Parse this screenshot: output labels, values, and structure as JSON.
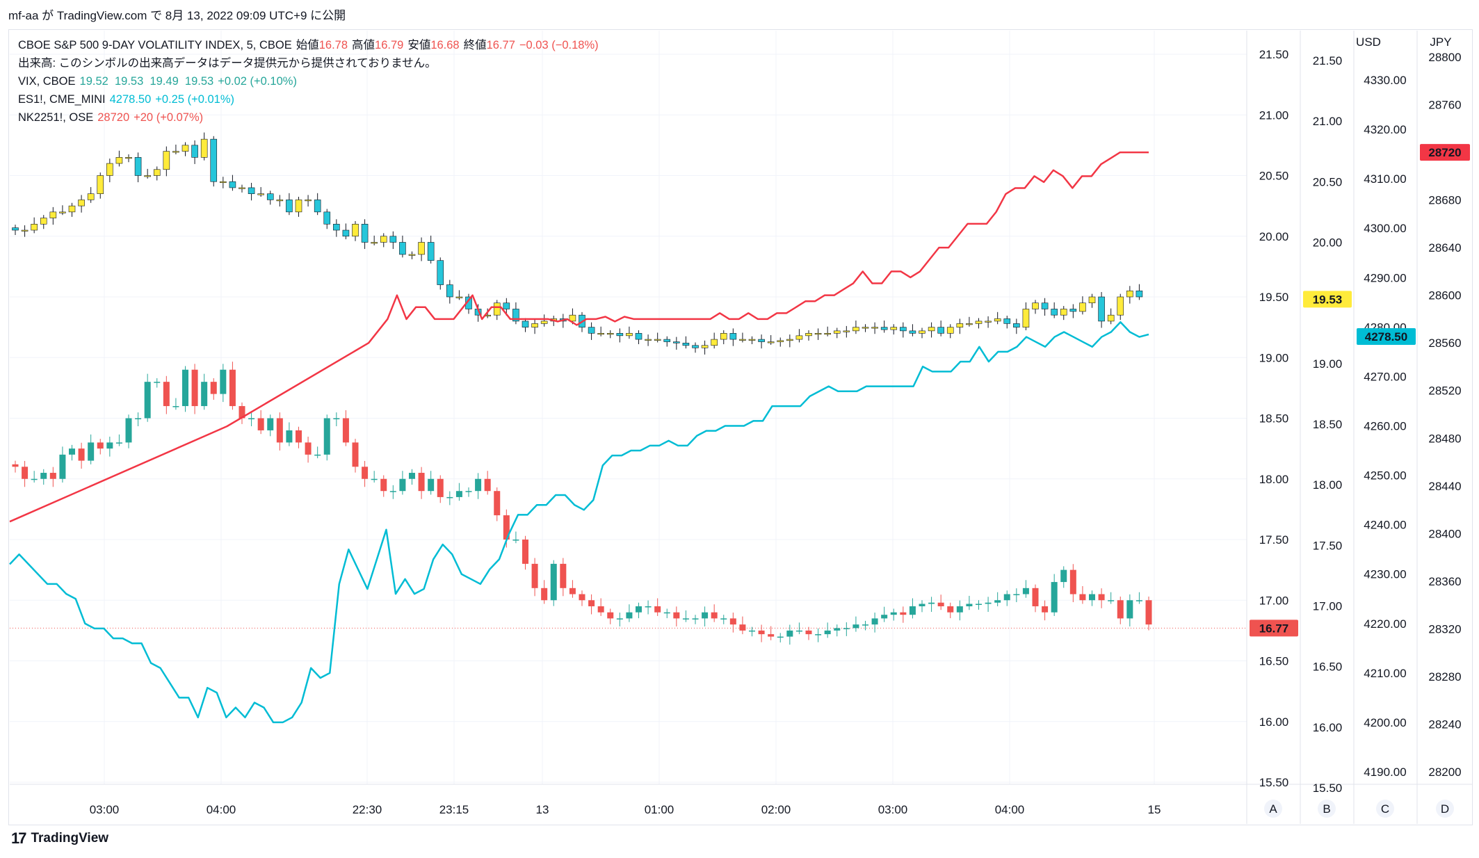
{
  "header": {
    "text": "mf-aa が TradingView.com で 8月 13, 2022 09:09 UTC+9 に公開"
  },
  "legend": {
    "main": {
      "symbol": "CBOE S&P 500 9-DAY VOLATILITY INDEX, 5, CBOE",
      "open_label": "始値",
      "open": "16.78",
      "high_label": "高値",
      "high": "16.79",
      "low_label": "安値",
      "low": "16.68",
      "close_label": "終値",
      "close": "16.77",
      "change": "−0.03 (−0.18%)"
    },
    "volume_note": "出来高: このシンボルの出来高データはデータ提供元から提供されておりません。",
    "vix": {
      "symbol": "VIX, CBOE",
      "values": "19.52  19.53  19.49  19.53",
      "change": "+0.02 (+0.10%)"
    },
    "es1": {
      "symbol": "ES1!, CME_MINI",
      "value": "4278.50",
      "change": "+0.25 (+0.01%)"
    },
    "nk": {
      "symbol": "NK2251!, OSE",
      "value": "28720",
      "change": "+20 (+0.07%)"
    }
  },
  "colors": {
    "up": "#26a69a",
    "down": "#ef5350",
    "vix_up": "#ffeb3b",
    "vix_down": "#26c6da",
    "es_line": "#00bcd4",
    "nk_line": "#f23645",
    "grid": "#f0f3fa"
  },
  "chart_data": {
    "type": "line",
    "x_ticks": [
      "03:00",
      "04:00",
      "22:30",
      "23:15",
      "13",
      "01:00",
      "02:00",
      "03:00",
      "04:00",
      "15"
    ],
    "axes": {
      "A": {
        "ticks": [
          "21.50",
          "21.00",
          "20.50",
          "20.00",
          "19.50",
          "19.00",
          "18.50",
          "18.00",
          "17.50",
          "17.00",
          "16.50",
          "16.00",
          "15.50"
        ],
        "range": [
          15.4,
          21.7
        ],
        "last_label": "16.77"
      },
      "B": {
        "ticks": [
          "21.50",
          "21.00",
          "20.50",
          "20.00",
          "19.50",
          "19.00",
          "18.50",
          "18.00",
          "17.50",
          "17.00",
          "16.50",
          "16.00",
          "15.50"
        ],
        "range": [
          15.4,
          21.7
        ],
        "last_label": "19.53"
      },
      "C": {
        "header": "USD",
        "ticks": [
          "4330.00",
          "4320.00",
          "4310.00",
          "4300.00",
          "4290.00",
          "4280.00",
          "4270.00",
          "4260.00",
          "4250.00",
          "4240.00",
          "4230.00",
          "4220.00",
          "4210.00",
          "4200.00",
          "4190.00"
        ],
        "range": [
          4185,
          4335
        ],
        "last_label": "4278.50"
      },
      "D": {
        "header": "JPY",
        "ticks": [
          "28800",
          "28760",
          "28720",
          "28680",
          "28640",
          "28600",
          "28560",
          "28520",
          "28480",
          "28440",
          "28400",
          "28360",
          "28320",
          "28280",
          "28240",
          "28200"
        ],
        "range": [
          28190,
          28810
        ],
        "last_label": "28720"
      }
    },
    "axis_letters": [
      "A",
      "B",
      "C",
      "D"
    ],
    "series": [
      {
        "name": "VIX9D",
        "type": "candle",
        "close": [
          18.1,
          18.0,
          18.0,
          18.05,
          18.0,
          18.2,
          18.25,
          18.15,
          18.3,
          18.25,
          18.3,
          18.3,
          18.5,
          18.5,
          18.8,
          18.8,
          18.6,
          18.6,
          18.9,
          18.6,
          18.8,
          18.7,
          18.9,
          18.6,
          18.5,
          18.5,
          18.4,
          18.5,
          18.3,
          18.4,
          18.3,
          18.2,
          18.2,
          18.5,
          18.5,
          18.3,
          18.1,
          18.0,
          18.0,
          17.9,
          17.9,
          18.0,
          18.05,
          17.9,
          18.0,
          17.85,
          17.85,
          17.9,
          17.9,
          18.0,
          17.9,
          17.7,
          17.5,
          17.5,
          17.3,
          17.1,
          17.0,
          17.3,
          17.1,
          17.05,
          17.0,
          16.95,
          16.9,
          16.85,
          16.85,
          16.9,
          16.95,
          16.95,
          16.9,
          16.9,
          16.85,
          16.85,
          16.85,
          16.9,
          16.85,
          16.85,
          16.8,
          16.75,
          16.75,
          16.72,
          16.7,
          16.7,
          16.75,
          16.75,
          16.72,
          16.72,
          16.75,
          16.77,
          16.77,
          16.8,
          16.8,
          16.85,
          16.88,
          16.9,
          16.88,
          16.95,
          16.97,
          16.98,
          16.95,
          16.9,
          16.95,
          16.97,
          16.97,
          16.98,
          17.0,
          17.05,
          17.05,
          17.1,
          16.95,
          16.9,
          17.15,
          17.25,
          17.05,
          17.0,
          17.05,
          17.0,
          17.0,
          16.85,
          17.0,
          17.0,
          16.8
        ],
        "hi_lo_spread": 0.06,
        "last": 16.77
      },
      {
        "name": "VIX",
        "type": "candle",
        "color_up": "#ffeb3b",
        "color_down": "#26c6da",
        "close": [
          20.05,
          20.05,
          20.1,
          20.15,
          20.2,
          20.2,
          20.25,
          20.3,
          20.35,
          20.5,
          20.6,
          20.65,
          20.65,
          20.5,
          20.5,
          20.55,
          20.7,
          20.7,
          20.75,
          20.65,
          20.8,
          20.45,
          20.45,
          20.4,
          20.4,
          20.35,
          20.35,
          20.3,
          20.3,
          20.2,
          20.3,
          20.3,
          20.2,
          20.1,
          20.05,
          20.0,
          20.1,
          19.95,
          19.95,
          20.0,
          19.95,
          19.85,
          19.85,
          19.95,
          19.8,
          19.6,
          19.5,
          19.5,
          19.4,
          19.35,
          19.35,
          19.45,
          19.4,
          19.3,
          19.25,
          19.28,
          19.3,
          19.32,
          19.3,
          19.35,
          19.25,
          19.2,
          19.2,
          19.2,
          19.18,
          19.2,
          19.15,
          19.15,
          19.15,
          19.13,
          19.12,
          19.1,
          19.08,
          19.1,
          19.15,
          19.2,
          19.15,
          19.15,
          19.15,
          19.13,
          19.13,
          19.14,
          19.15,
          19.18,
          19.2,
          19.2,
          19.2,
          19.22,
          19.22,
          19.25,
          19.25,
          19.25,
          19.23,
          19.25,
          19.22,
          19.2,
          19.22,
          19.25,
          19.2,
          19.25,
          19.28,
          19.28,
          19.3,
          19.3,
          19.32,
          19.28,
          19.25,
          19.4,
          19.45,
          19.4,
          19.35,
          19.4,
          19.38,
          19.45,
          19.5,
          19.3,
          19.35,
          19.5,
          19.55,
          19.5
        ],
        "hi_lo_spread": 0.05,
        "last": 19.53
      },
      {
        "name": "ES1!",
        "type": "line",
        "color": "#00bcd4",
        "values": [
          4232,
          4234,
          4232,
          4230,
          4228,
          4228,
          4226,
          4225,
          4220,
          4219,
          4219,
          4217,
          4217,
          4216,
          4216,
          4212,
          4211,
          4208,
          4205,
          4205,
          4201,
          4207,
          4206,
          4201,
          4203,
          4201,
          4204,
          4203,
          4200,
          4200,
          4201,
          4204,
          4211,
          4209,
          4210,
          4228,
          4235,
          4231,
          4227,
          4233,
          4239,
          4226,
          4229,
          4226,
          4227,
          4233,
          4236,
          4234,
          4230,
          4229,
          4228,
          4231,
          4233,
          4238,
          4242,
          4242,
          4244,
          4244,
          4246,
          4246,
          4244,
          4243,
          4245,
          4252,
          4254,
          4254,
          4255,
          4255,
          4256,
          4256,
          4257,
          4256,
          4256,
          4258,
          4259,
          4259,
          4260,
          4260,
          4260,
          4261,
          4261,
          4264,
          4264,
          4264,
          4264,
          4266,
          4267,
          4268,
          4267,
          4267,
          4267,
          4268,
          4268,
          4268,
          4268,
          4268,
          4268,
          4272,
          4271,
          4271,
          4271,
          4273,
          4273,
          4276,
          4273,
          4275,
          4275,
          4276,
          4278,
          4277,
          4276,
          4278,
          4279,
          4278,
          4277,
          4276,
          4278,
          4279,
          4281,
          4279,
          4278,
          4278.5
        ],
        "last": 4278.5
      },
      {
        "name": "NK2251!",
        "type": "line",
        "color": "#f23645",
        "values": [
          28580,
          28580,
          28578,
          28580,
          28575,
          28580,
          28580,
          28582,
          28578,
          28582,
          28580,
          28580,
          28580,
          28580,
          28580,
          28580,
          28580,
          28580,
          28580,
          28585,
          28580,
          28580,
          28585,
          28580,
          28580,
          28585,
          28585,
          28590,
          28595,
          28595,
          28600,
          28600,
          28605,
          28610,
          28620,
          28610,
          28610,
          28620,
          28620,
          28615,
          28620,
          28630,
          28640,
          28640,
          28650,
          28660,
          28660,
          28660,
          28670,
          28685,
          28690,
          28690,
          28700,
          28695,
          28705,
          28700,
          28690,
          28700,
          28700,
          28710,
          28715,
          28720,
          28720,
          28720,
          28720
        ],
        "x_start_index": 56,
        "prelude": [
          [
            0,
            28410
          ],
          [
            23,
            28490
          ],
          [
            38,
            28560
          ],
          [
            40,
            28580
          ],
          [
            41,
            28600
          ],
          [
            42,
            28580
          ],
          [
            43,
            28590
          ],
          [
            44,
            28590
          ],
          [
            45,
            28580
          ],
          [
            46,
            28580
          ],
          [
            47,
            28580
          ],
          [
            48,
            28590
          ],
          [
            49,
            28600
          ],
          [
            50,
            28580
          ],
          [
            51,
            28590
          ],
          [
            52,
            28590
          ],
          [
            53,
            28580
          ],
          [
            54,
            28580
          ],
          [
            55,
            28580
          ]
        ],
        "last": 28720
      }
    ]
  }
}
